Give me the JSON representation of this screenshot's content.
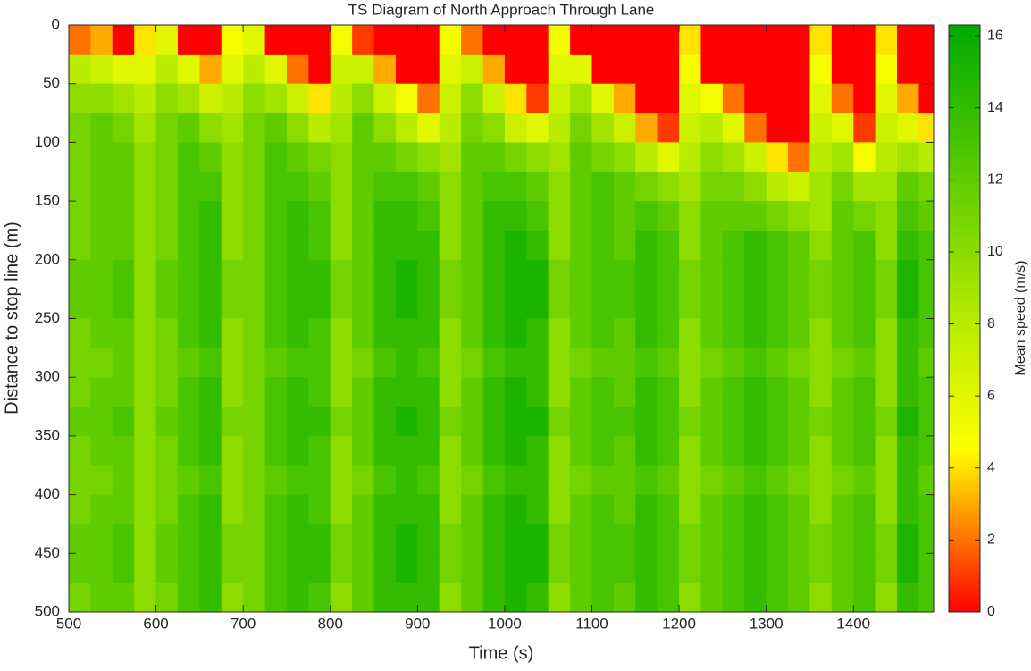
{
  "chart_data": {
    "type": "heatmap",
    "title": "TS Diagram of North Approach Through Lane",
    "x_label": "Time (s)",
    "y_label": "Distance to stop line (m)",
    "colorbar_label": "Mean speed (m/s)",
    "xlim": [
      500,
      1492
    ],
    "ylim": [
      0,
      500
    ],
    "y_reversed": true,
    "xticks": [
      500,
      600,
      700,
      800,
      900,
      1000,
      1100,
      1200,
      1300,
      1400
    ],
    "yticks": [
      0,
      50,
      100,
      150,
      200,
      250,
      300,
      350,
      400,
      450,
      500
    ],
    "clim": [
      0,
      16.3
    ],
    "cticks": [
      0,
      2,
      4,
      6,
      8,
      10,
      12,
      14,
      16
    ],
    "colormap": [
      {
        "value": 0,
        "color": "#ff0000"
      },
      {
        "value": 4.5,
        "color": "#ffff00"
      },
      {
        "value": 8,
        "color": "#b8ec00"
      },
      {
        "value": 16.3,
        "color": "#00aa00"
      }
    ],
    "x": [
      500,
      525,
      550,
      575,
      600,
      625,
      650,
      675,
      700,
      725,
      750,
      775,
      800,
      825,
      850,
      875,
      900,
      925,
      950,
      975,
      1000,
      1025,
      1050,
      1075,
      1100,
      1125,
      1150,
      1175,
      1200,
      1225,
      1250,
      1275,
      1300,
      1325,
      1350,
      1375,
      1400,
      1425,
      1450,
      1475
    ],
    "y": [
      0,
      25,
      50,
      75,
      100,
      125,
      150,
      175,
      200,
      225,
      250,
      275,
      300,
      325,
      350,
      375,
      400,
      425,
      450,
      475
    ],
    "values": [
      [
        2,
        3,
        0,
        4,
        6,
        0,
        0,
        5,
        6,
        0,
        0,
        0,
        5,
        1,
        0,
        0,
        0,
        5,
        2,
        0,
        0,
        0,
        5,
        0,
        0,
        0,
        0,
        0,
        4,
        0,
        0,
        0,
        0,
        0,
        4,
        0,
        0,
        4,
        0,
        0
      ],
      [
        8,
        7,
        6,
        6,
        8,
        6,
        3,
        6,
        8,
        6,
        2,
        0,
        7,
        7,
        3,
        0,
        0,
        6,
        7,
        3,
        0,
        0,
        6,
        6,
        0,
        0,
        0,
        0,
        5,
        0,
        0,
        0,
        0,
        0,
        5,
        0,
        0,
        5,
        0,
        0
      ],
      [
        10,
        10,
        9,
        8,
        10,
        9,
        7,
        8,
        10,
        9,
        7,
        4,
        8,
        10,
        7,
        5,
        2,
        7,
        10,
        7,
        4,
        1,
        7,
        9,
        6,
        3,
        0,
        0,
        6,
        5,
        2,
        0,
        0,
        0,
        6,
        2,
        0,
        6,
        3,
        0
      ],
      [
        11,
        12,
        11,
        9,
        11,
        12,
        10,
        9,
        11,
        12,
        10,
        8,
        9,
        12,
        10,
        8,
        6,
        8,
        11,
        10,
        7,
        6,
        8,
        11,
        9,
        7,
        3,
        1,
        7,
        8,
        6,
        2,
        0,
        0,
        7,
        6,
        1,
        7,
        6,
        4
      ],
      [
        11,
        12,
        12,
        10,
        11,
        13,
        12,
        10,
        11,
        13,
        12,
        11,
        10,
        12,
        12,
        11,
        10,
        9,
        12,
        12,
        11,
        10,
        9,
        12,
        11,
        10,
        8,
        6,
        8,
        10,
        9,
        7,
        4,
        2,
        8,
        9,
        5,
        8,
        9,
        8
      ],
      [
        11,
        12,
        12,
        10,
        11,
        13,
        13,
        10,
        11,
        13,
        13,
        12,
        10,
        12,
        13,
        13,
        12,
        10,
        12,
        13,
        13,
        12,
        10,
        12,
        13,
        12,
        11,
        10,
        9,
        11,
        11,
        10,
        8,
        7,
        9,
        11,
        9,
        9,
        12,
        11
      ],
      [
        11,
        12,
        12,
        10,
        11,
        13,
        14,
        10,
        11,
        13,
        14,
        13,
        10,
        12,
        14,
        14,
        13,
        10,
        12,
        14,
        14,
        13,
        10,
        12,
        13,
        12,
        13,
        12,
        10,
        12,
        12,
        12,
        11,
        10,
        9,
        12,
        11,
        10,
        13,
        12
      ],
      [
        11,
        12,
        12,
        10,
        11,
        13,
        14,
        10,
        11,
        13,
        14,
        13,
        10,
        12,
        14,
        14,
        14,
        10,
        12,
        14,
        15,
        14,
        10,
        12,
        13,
        12,
        14,
        13,
        10,
        12,
        13,
        14,
        13,
        12,
        10,
        12,
        13,
        10,
        14,
        13
      ],
      [
        12,
        12,
        13,
        10,
        12,
        13,
        14,
        11,
        11,
        13,
        14,
        14,
        11,
        12,
        14,
        15,
        14,
        11,
        12,
        14,
        15,
        15,
        11,
        12,
        13,
        13,
        14,
        13,
        11,
        12,
        13,
        14,
        13,
        12,
        11,
        12,
        13,
        11,
        15,
        13
      ],
      [
        12,
        12,
        13,
        10,
        12,
        13,
        14,
        11,
        11,
        13,
        14,
        14,
        11,
        12,
        14,
        15,
        14,
        11,
        12,
        14,
        15,
        15,
        11,
        12,
        13,
        13,
        14,
        13,
        11,
        12,
        13,
        14,
        13,
        12,
        11,
        12,
        13,
        11,
        15,
        13
      ],
      [
        11,
        12,
        12,
        10,
        11,
        13,
        14,
        10,
        11,
        13,
        14,
        13,
        10,
        12,
        14,
        14,
        14,
        10,
        12,
        14,
        15,
        14,
        10,
        12,
        13,
        12,
        14,
        13,
        10,
        12,
        13,
        14,
        13,
        12,
        10,
        12,
        13,
        10,
        14,
        13
      ],
      [
        11,
        11,
        12,
        10,
        11,
        12,
        13,
        10,
        11,
        12,
        13,
        13,
        10,
        11,
        13,
        14,
        13,
        10,
        11,
        13,
        14,
        14,
        10,
        11,
        12,
        12,
        13,
        12,
        10,
        11,
        12,
        13,
        12,
        11,
        10,
        11,
        12,
        10,
        14,
        12
      ],
      [
        11,
        12,
        12,
        10,
        11,
        13,
        14,
        10,
        11,
        13,
        14,
        13,
        10,
        12,
        14,
        14,
        14,
        10,
        12,
        14,
        15,
        14,
        10,
        12,
        13,
        12,
        14,
        13,
        10,
        12,
        13,
        14,
        13,
        12,
        10,
        12,
        13,
        10,
        14,
        13
      ],
      [
        12,
        12,
        13,
        10,
        12,
        13,
        14,
        11,
        11,
        13,
        14,
        14,
        11,
        12,
        14,
        15,
        14,
        11,
        12,
        14,
        15,
        15,
        11,
        12,
        13,
        13,
        14,
        13,
        11,
        12,
        13,
        14,
        13,
        12,
        11,
        12,
        13,
        11,
        15,
        13
      ],
      [
        11,
        12,
        12,
        10,
        11,
        13,
        14,
        10,
        11,
        13,
        14,
        13,
        10,
        12,
        14,
        14,
        14,
        10,
        12,
        14,
        15,
        14,
        10,
        12,
        13,
        12,
        14,
        13,
        10,
        12,
        13,
        14,
        13,
        12,
        10,
        12,
        13,
        10,
        14,
        13
      ],
      [
        11,
        11,
        12,
        10,
        11,
        12,
        13,
        10,
        11,
        12,
        13,
        13,
        10,
        11,
        13,
        14,
        13,
        10,
        11,
        13,
        14,
        14,
        10,
        11,
        12,
        12,
        13,
        12,
        10,
        11,
        12,
        13,
        12,
        11,
        10,
        11,
        12,
        10,
        14,
        12
      ],
      [
        11,
        12,
        12,
        10,
        11,
        13,
        14,
        10,
        11,
        13,
        14,
        13,
        10,
        12,
        14,
        14,
        14,
        10,
        12,
        14,
        15,
        14,
        10,
        12,
        13,
        12,
        14,
        13,
        10,
        12,
        13,
        14,
        13,
        12,
        10,
        12,
        13,
        10,
        14,
        13
      ],
      [
        12,
        12,
        13,
        10,
        12,
        13,
        14,
        11,
        11,
        13,
        14,
        14,
        11,
        12,
        14,
        15,
        14,
        11,
        12,
        14,
        15,
        15,
        11,
        12,
        13,
        13,
        14,
        13,
        11,
        12,
        13,
        14,
        13,
        12,
        11,
        12,
        13,
        11,
        15,
        13
      ],
      [
        12,
        12,
        13,
        10,
        12,
        13,
        14,
        11,
        11,
        13,
        14,
        14,
        11,
        12,
        14,
        15,
        14,
        11,
        12,
        14,
        15,
        15,
        11,
        12,
        13,
        13,
        14,
        13,
        11,
        12,
        13,
        14,
        13,
        12,
        11,
        12,
        13,
        11,
        15,
        13
      ],
      [
        11,
        12,
        12,
        10,
        11,
        13,
        14,
        10,
        11,
        13,
        14,
        13,
        10,
        12,
        14,
        14,
        14,
        10,
        12,
        14,
        15,
        14,
        10,
        12,
        13,
        12,
        14,
        13,
        10,
        12,
        13,
        14,
        13,
        12,
        10,
        12,
        13,
        10,
        14,
        13
      ]
    ]
  }
}
